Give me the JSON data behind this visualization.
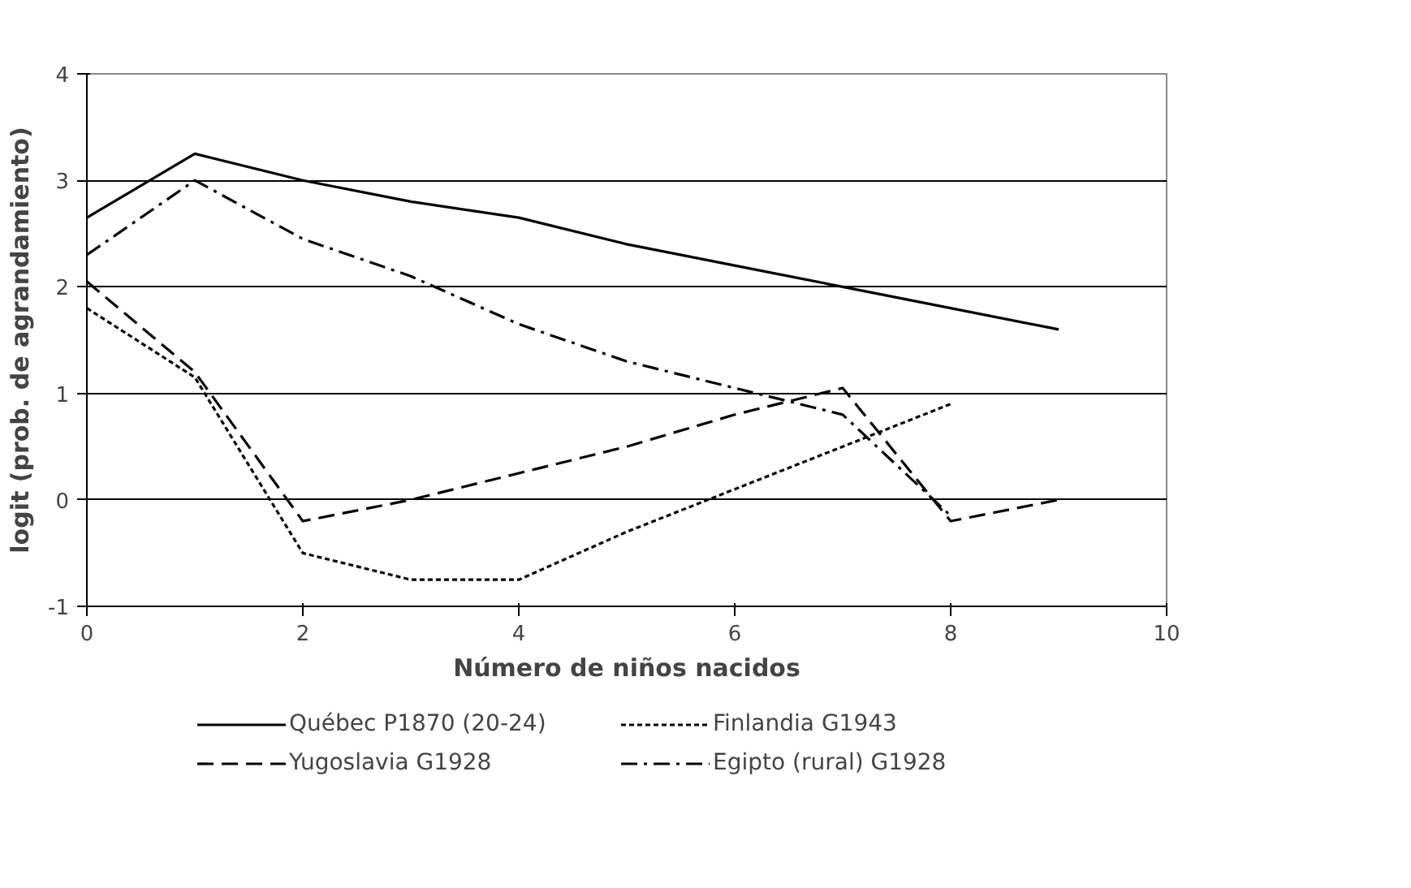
{
  "chart_data": {
    "type": "line",
    "xlabel": "Número de niños nacidos",
    "ylabel": "logit (prob. de agrandamiento)",
    "xlim": [
      0,
      10
    ],
    "xticks": [
      0,
      2,
      4,
      6,
      8,
      10
    ],
    "ylim": [
      -1,
      4
    ],
    "yticks": [
      -1,
      0,
      1,
      2,
      3,
      4
    ],
    "grid": "y",
    "legend": "bottom",
    "series": [
      {
        "name": "Québec P1870 (20-24)",
        "color": "#000000",
        "line_style": "solid",
        "x": [
          0,
          1,
          2,
          3,
          4,
          5,
          6,
          7,
          8,
          9
        ],
        "values": [
          2.65,
          3.25,
          3.0,
          2.8,
          2.65,
          2.4,
          2.2,
          2.0,
          1.8,
          1.6
        ]
      },
      {
        "name": "Yugoslavia G1928",
        "color": "#000000",
        "line_style": "dashed",
        "x": [
          0,
          1,
          2,
          3,
          4,
          5,
          6,
          7,
          8,
          9
        ],
        "values": [
          2.05,
          1.2,
          -0.2,
          0.0,
          0.25,
          0.5,
          0.8,
          1.05,
          -0.2,
          0.0
        ]
      },
      {
        "name": "Finlandia G1943",
        "color": "#000000",
        "line_style": "dotted",
        "x": [
          0,
          1,
          2,
          3,
          4,
          5,
          6,
          7,
          8
        ],
        "values": [
          1.8,
          1.15,
          -0.5,
          -0.75,
          -0.75,
          -0.3,
          0.1,
          0.5,
          0.9
        ]
      },
      {
        "name": "Egipto (rural) G1928",
        "color": "#000000",
        "line_style": "dashdot",
        "x": [
          0,
          1,
          2,
          3,
          4,
          5,
          6,
          7,
          8
        ],
        "values": [
          2.3,
          3.0,
          2.45,
          2.1,
          1.65,
          1.3,
          1.05,
          0.8,
          -0.15
        ]
      }
    ]
  }
}
